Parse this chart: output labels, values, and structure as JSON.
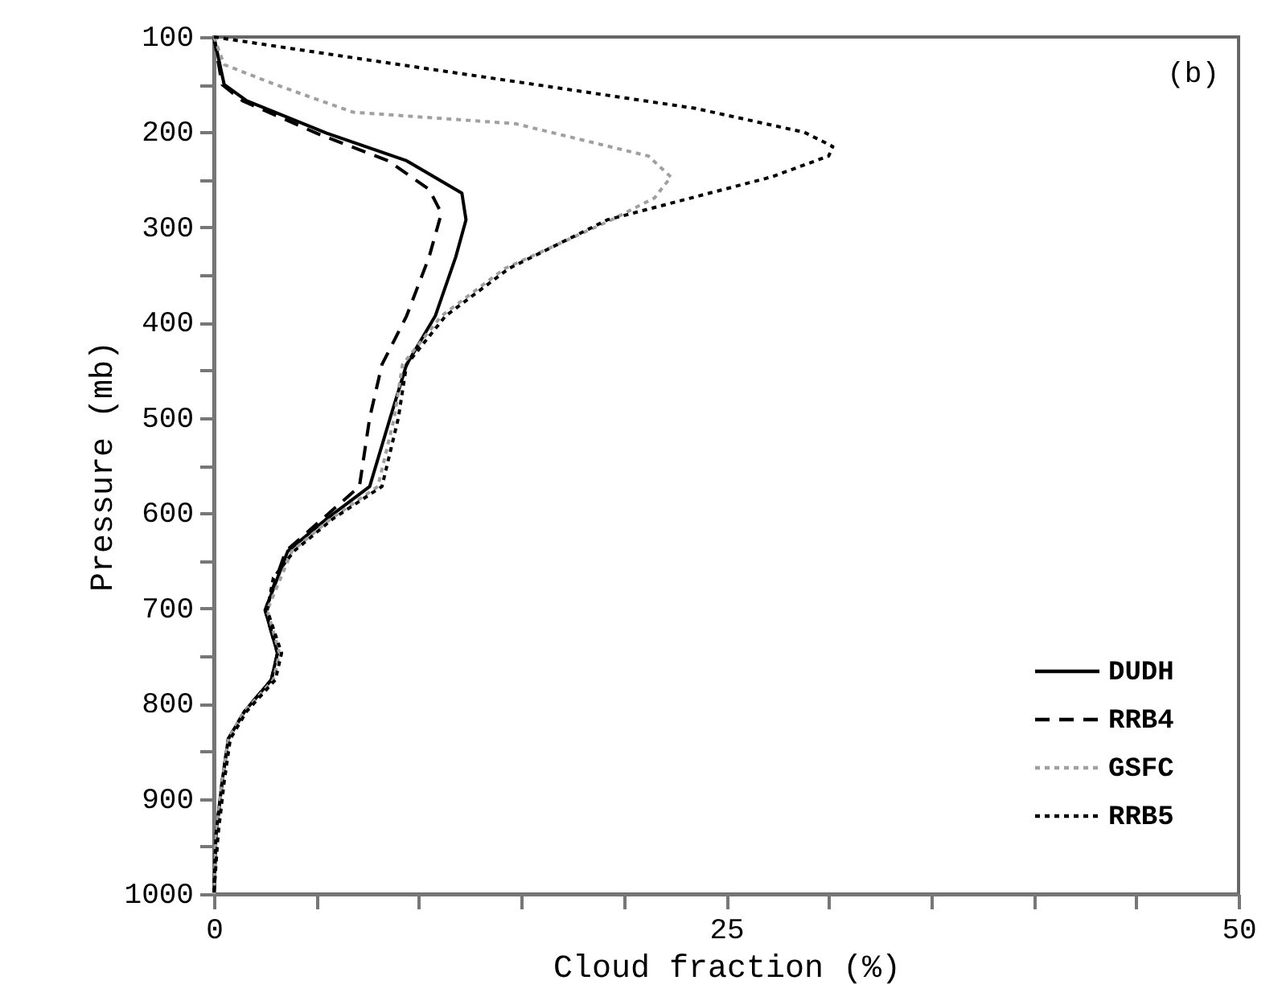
{
  "chart_data": {
    "type": "line",
    "xlabel": "Cloud fraction (%)",
    "ylabel": "Pressure (mb)",
    "annotations": [
      "(b)"
    ],
    "xlim": [
      0,
      50
    ],
    "ylim": [
      1000,
      100
    ],
    "xticks": [
      0,
      {
        "value": 5,
        "label": null
      },
      {
        "value": 10,
        "label": null
      },
      {
        "value": 15,
        "label": null
      },
      {
        "value": 20,
        "label": null
      },
      25,
      {
        "value": 30,
        "label": null
      },
      {
        "value": 35,
        "label": null
      },
      {
        "value": 40,
        "label": null
      },
      {
        "value": 45,
        "label": null
      },
      50
    ],
    "yticks": [
      100,
      {
        "value": 150,
        "label": null
      },
      200,
      {
        "value": 250,
        "label": null
      },
      300,
      {
        "value": 350,
        "label": null
      },
      400,
      {
        "value": 450,
        "label": null
      },
      500,
      {
        "value": 550,
        "label": null
      },
      600,
      {
        "value": 650,
        "label": null
      },
      700,
      {
        "value": 750,
        "label": null
      },
      800,
      {
        "value": 850,
        "label": null
      },
      900,
      {
        "value": 950,
        "label": null
      },
      1000
    ],
    "grid": false,
    "legend": "bottom right",
    "marker": "none",
    "orientation": "horizontal",
    "series": [
      {
        "name": "DUDH",
        "color": "#000000",
        "line_style": "solid",
        "values": [
          0,
          0.5,
          1.6,
          5.5,
          9.4,
          12.1,
          12.3,
          11.8,
          10.8,
          9.4,
          8.6,
          7.6,
          5.5,
          3.6,
          2.5,
          3.1,
          2.8,
          1.5,
          0.7,
          0.4,
          0.1,
          0
        ],
        "x": [
          100,
          150,
          167,
          201,
          230,
          264,
          292,
          331,
          393,
          444,
          500,
          572,
          606,
          640,
          702,
          747,
          775,
          808,
          837,
          882,
          938,
          1000
        ]
      },
      {
        "name": "RRB4",
        "color": "#000000",
        "line_style": "dashed",
        "values": [
          0,
          0.4,
          1.4,
          5,
          8.5,
          10.5,
          11.1,
          10.5,
          9.4,
          8.2,
          7.6,
          7.1,
          5.3,
          3.5,
          2.5,
          3.1,
          2.8,
          1.5,
          0.7,
          0.4,
          0.1,
          0
        ],
        "x": [
          100,
          150,
          167,
          201,
          230,
          260,
          285,
          331,
          393,
          444,
          500,
          572,
          606,
          640,
          702,
          747,
          775,
          808,
          837,
          882,
          938,
          1000
        ]
      },
      {
        "name": "GSFC",
        "color": "#a0a0a0",
        "line_style": "dotted",
        "values": [
          0,
          0.5,
          3,
          6.8,
          14.7,
          21.2,
          22.3,
          21.5,
          19.4,
          14.2,
          11.1,
          9.2,
          8.8,
          8,
          5.7,
          3.8,
          2.6,
          3.2,
          2.9,
          1.5,
          0.7,
          0.4,
          0.1,
          0
        ],
        "x": [
          100,
          129,
          150,
          179,
          191,
          225,
          247,
          269,
          292,
          343,
          393,
          444,
          500,
          572,
          606,
          640,
          702,
          747,
          775,
          808,
          837,
          882,
          938,
          1000
        ]
      },
      {
        "name": "RRB5",
        "color": "#000000",
        "line_style": "dotted",
        "values": [
          0,
          7.8,
          15.7,
          23.5,
          28.8,
          30.2,
          30,
          27.2,
          19.2,
          14.4,
          11.3,
          9.4,
          9,
          8.2,
          5.8,
          3.9,
          2.9,
          2.6,
          3.3,
          3,
          1.6,
          0.8,
          0.5,
          0.2,
          0
        ],
        "x": [
          100,
          125,
          150,
          175,
          200,
          215,
          225,
          247,
          292,
          343,
          393,
          444,
          500,
          572,
          606,
          640,
          668,
          702,
          747,
          775,
          808,
          837,
          882,
          938,
          1000
        ]
      }
    ]
  }
}
